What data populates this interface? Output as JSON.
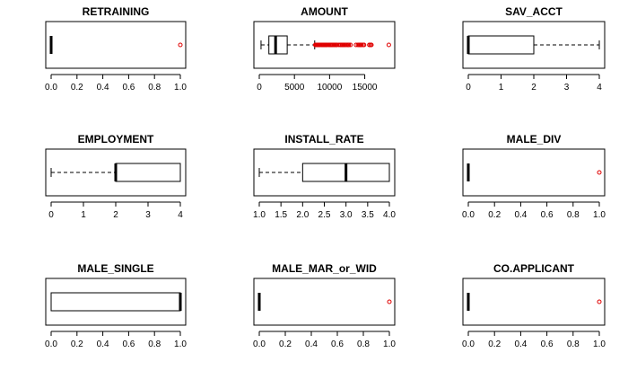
{
  "chart_data": [
    {
      "type": "boxplot",
      "title": "RETRAINING",
      "xlim": [
        0,
        1
      ],
      "ticks": [
        0,
        0.2,
        0.4,
        0.6,
        0.8,
        1.0
      ],
      "tick_labels": [
        "0.0",
        "0.2",
        "0.4",
        "0.6",
        "0.8",
        "1.0"
      ],
      "min": 0,
      "q1": 0,
      "median": 0,
      "q3": 0,
      "max": 0,
      "outliers": [
        1.0
      ]
    },
    {
      "type": "boxplot",
      "title": "AMOUNT",
      "xlim": [
        0,
        18500
      ],
      "ticks": [
        0,
        5000,
        10000,
        15000
      ],
      "tick_labels": [
        "0",
        "5000",
        "10000",
        "15000"
      ],
      "min": 250,
      "q1": 1366,
      "median": 2320,
      "q3": 3972,
      "max": 7882,
      "outliers": [
        7966,
        8072,
        8133,
        8229,
        8318,
        8358,
        8386,
        8471,
        8487,
        8588,
        8613,
        8648,
        8858,
        8947,
        8978,
        9034,
        9157,
        9271,
        9277,
        9283,
        9398,
        9436,
        9566,
        9572,
        9629,
        9857,
        9960,
        10127,
        10144,
        10222,
        10297,
        10366,
        10477,
        10623,
        10722,
        10875,
        10961,
        10974,
        11054,
        11328,
        11560,
        11590,
        11760,
        11816,
        11938,
        11998,
        12169,
        12204,
        12389,
        12579,
        12612,
        12680,
        12749,
        12976,
        13756,
        14027,
        14179,
        14318,
        14421,
        14555,
        14782,
        14896,
        15653,
        15672,
        15857,
        15945,
        18424
      ]
    },
    {
      "type": "boxplot",
      "title": "SAV_ACCT",
      "xlim": [
        0,
        4
      ],
      "ticks": [
        0,
        1,
        2,
        3,
        4
      ],
      "tick_labels": [
        "0",
        "1",
        "2",
        "3",
        "4"
      ],
      "min": 0,
      "q1": 0,
      "median": 0,
      "q3": 2,
      "max": 4,
      "outliers": []
    },
    {
      "type": "boxplot",
      "title": "EMPLOYMENT",
      "xlim": [
        0,
        4
      ],
      "ticks": [
        0,
        1,
        2,
        3,
        4
      ],
      "tick_labels": [
        "0",
        "1",
        "2",
        "3",
        "4"
      ],
      "min": 0,
      "q1": 2,
      "median": 2,
      "q3": 4,
      "max": 4,
      "outliers": []
    },
    {
      "type": "boxplot",
      "title": "INSTALL_RATE",
      "xlim": [
        1,
        4
      ],
      "ticks": [
        1.0,
        1.5,
        2.0,
        2.5,
        3.0,
        3.5,
        4.0
      ],
      "tick_labels": [
        "1.0",
        "1.5",
        "2.0",
        "2.5",
        "3.0",
        "3.5",
        "4.0"
      ],
      "min": 1,
      "q1": 2,
      "median": 3,
      "q3": 4,
      "max": 4,
      "outliers": []
    },
    {
      "type": "boxplot",
      "title": "MALE_DIV",
      "xlim": [
        0,
        1
      ],
      "ticks": [
        0,
        0.2,
        0.4,
        0.6,
        0.8,
        1.0
      ],
      "tick_labels": [
        "0.0",
        "0.2",
        "0.4",
        "0.6",
        "0.8",
        "1.0"
      ],
      "min": 0,
      "q1": 0,
      "median": 0,
      "q3": 0,
      "max": 0,
      "outliers": [
        1.0
      ]
    },
    {
      "type": "boxplot",
      "title": "MALE_SINGLE",
      "xlim": [
        0,
        1
      ],
      "ticks": [
        0,
        0.2,
        0.4,
        0.6,
        0.8,
        1.0
      ],
      "tick_labels": [
        "0.0",
        "0.2",
        "0.4",
        "0.6",
        "0.8",
        "1.0"
      ],
      "min": 0,
      "q1": 0,
      "median": 1,
      "q3": 1,
      "max": 1,
      "outliers": []
    },
    {
      "type": "boxplot",
      "title": "MALE_MAR_or_WID",
      "xlim": [
        0,
        1
      ],
      "ticks": [
        0,
        0.2,
        0.4,
        0.6,
        0.8,
        1.0
      ],
      "tick_labels": [
        "0.0",
        "0.2",
        "0.4",
        "0.6",
        "0.8",
        "1.0"
      ],
      "min": 0,
      "q1": 0,
      "median": 0,
      "q3": 0,
      "max": 0,
      "outliers": [
        1.0
      ]
    },
    {
      "type": "boxplot",
      "title": "CO.APPLICANT",
      "xlim": [
        0,
        1
      ],
      "ticks": [
        0,
        0.2,
        0.4,
        0.6,
        0.8,
        1.0
      ],
      "tick_labels": [
        "0.0",
        "0.2",
        "0.4",
        "0.6",
        "0.8",
        "1.0"
      ],
      "min": 0,
      "q1": 0,
      "median": 0,
      "q3": 0,
      "max": 0,
      "outliers": [
        1.0
      ]
    }
  ],
  "colors": {
    "outlier": "#e00000",
    "box_fill": "#ffffff",
    "line": "#000000",
    "background": "#ffffff"
  },
  "layout": {
    "orientation": "horizontal",
    "grid": false,
    "legend": "none",
    "rows": 3,
    "cols": 3
  }
}
